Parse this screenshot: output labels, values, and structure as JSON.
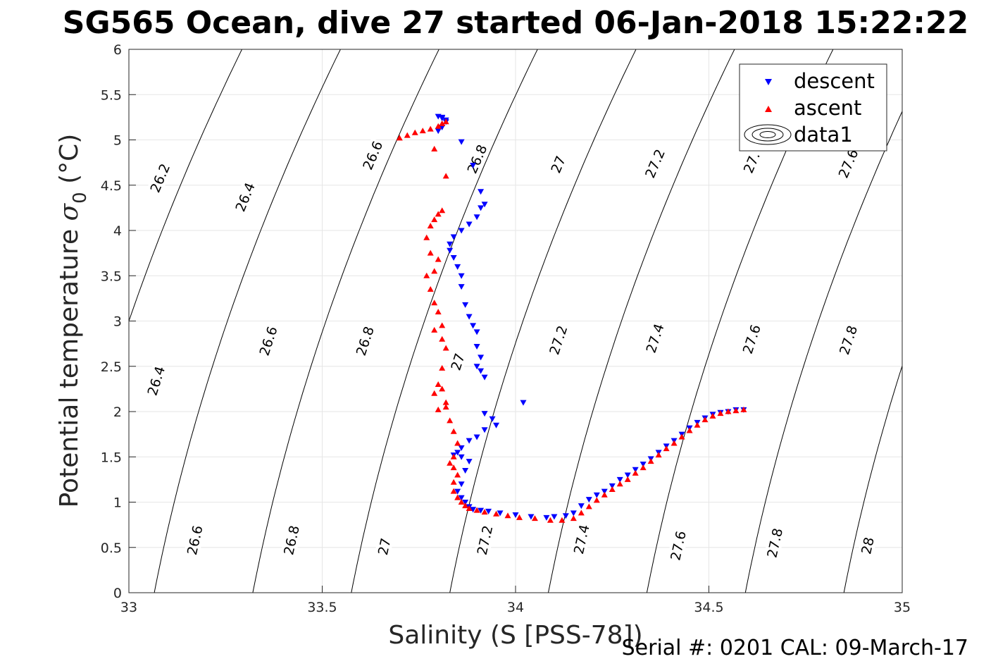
{
  "chart_data": {
    "type": "scatter",
    "title": "SG565 Ocean, dive 27 started 06-Jan-2018 15:22:22",
    "xlabel": "Salinity (S [PSS-78])",
    "ylabel_main": "Potential temperature ",
    "ylabel_sym": "σ",
    "ylabel_sub": "0",
    "ylabel_unit": " (°C)",
    "xlim": [
      33,
      35
    ],
    "ylim": [
      0,
      6
    ],
    "xticks": [
      "33",
      "33.5",
      "34",
      "34.5",
      "35"
    ],
    "yticks": [
      "0",
      "0.5",
      "1",
      "1.5",
      "2",
      "2.5",
      "3",
      "3.5",
      "4",
      "4.5",
      "5",
      "5.5",
      "6"
    ],
    "grid": true,
    "legend_position": "top-right",
    "legend": [
      "descent",
      "ascent",
      "data1"
    ],
    "footer": "Serial #: 0201  CAL: 09-March-17",
    "colors": {
      "descent": "#0000ff",
      "ascent": "#ff0000",
      "contour": "#000000",
      "grid": "#e6e6e6"
    },
    "contour_levels": [
      26.2,
      26.4,
      26.6,
      26.8,
      27,
      27.2,
      27.4,
      27.6,
      27.8,
      28
    ],
    "contour_labels": [
      {
        "text": "26.2",
        "s": 33.08,
        "t": 4.58
      },
      {
        "text": "26.4",
        "s": 33.3,
        "t": 4.37
      },
      {
        "text": "26.6",
        "s": 33.63,
        "t": 4.83
      },
      {
        "text": "26.8",
        "s": 33.9,
        "t": 4.79
      },
      {
        "text": "27",
        "s": 34.11,
        "t": 4.73
      },
      {
        "text": "27.2",
        "s": 34.36,
        "t": 4.74
      },
      {
        "text": "27.",
        "s": 34.61,
        "t": 4.75
      },
      {
        "text": "27.6",
        "s": 34.86,
        "t": 4.74
      },
      {
        "text": "26.4",
        "s": 33.07,
        "t": 2.34
      },
      {
        "text": "26.6",
        "s": 33.36,
        "t": 2.78
      },
      {
        "text": "26.8",
        "s": 33.61,
        "t": 2.78
      },
      {
        "text": "27",
        "s": 33.85,
        "t": 2.55
      },
      {
        "text": "27.2",
        "s": 34.11,
        "t": 2.79
      },
      {
        "text": "27.4",
        "s": 34.36,
        "t": 2.81
      },
      {
        "text": "27.6",
        "s": 34.61,
        "t": 2.8
      },
      {
        "text": "27.8",
        "s": 34.86,
        "t": 2.79
      },
      {
        "text": "26.6",
        "s": 33.17,
        "t": 0.58
      },
      {
        "text": "26.8",
        "s": 33.42,
        "t": 0.58
      },
      {
        "text": "27",
        "s": 33.66,
        "t": 0.51
      },
      {
        "text": "27.2",
        "s": 33.92,
        "t": 0.58
      },
      {
        "text": "27.4",
        "s": 34.17,
        "t": 0.59
      },
      {
        "text": "27.6",
        "s": 34.42,
        "t": 0.52
      },
      {
        "text": "27.8",
        "s": 34.67,
        "t": 0.55
      },
      {
        "text": "28",
        "s": 34.91,
        "t": 0.52
      }
    ],
    "series": [
      {
        "name": "descent",
        "marker": "triangle-down",
        "x": [
          33.8,
          33.81,
          33.82,
          33.81,
          33.8,
          33.81,
          33.82,
          33.86,
          33.89,
          33.91,
          33.92,
          33.91,
          33.9,
          33.88,
          33.86,
          33.84,
          33.83,
          33.83,
          33.84,
          33.85,
          33.86,
          33.86,
          33.87,
          33.88,
          33.89,
          33.9,
          33.9,
          33.91,
          33.9,
          33.91,
          33.92,
          33.92,
          33.94,
          34.02,
          33.95,
          33.92,
          33.9,
          33.88,
          33.86,
          33.85,
          33.84,
          33.86,
          33.88,
          33.87,
          33.86,
          33.85,
          33.86,
          33.87,
          33.88,
          33.89,
          33.91,
          33.93,
          33.96,
          34.0,
          34.04,
          34.08,
          34.1,
          34.13,
          34.15,
          34.17,
          34.19,
          34.21,
          34.23,
          34.25,
          34.27,
          34.29,
          34.31,
          34.33,
          34.35,
          34.37,
          34.39,
          34.41,
          34.43,
          34.45,
          34.47,
          34.49,
          34.51,
          34.53,
          34.55,
          34.57,
          34.59
        ],
        "y": [
          5.26,
          5.24,
          5.2,
          5.14,
          5.1,
          5.25,
          5.22,
          4.98,
          4.72,
          4.43,
          4.29,
          4.25,
          4.15,
          4.07,
          4.0,
          3.93,
          3.85,
          3.78,
          3.7,
          3.6,
          3.5,
          3.38,
          3.18,
          3.05,
          2.95,
          2.88,
          2.72,
          2.6,
          2.5,
          2.45,
          2.38,
          1.98,
          1.92,
          2.1,
          1.85,
          1.8,
          1.72,
          1.68,
          1.6,
          1.55,
          1.52,
          1.5,
          1.45,
          1.35,
          1.2,
          1.12,
          1.05,
          1.0,
          0.95,
          0.92,
          0.91,
          0.9,
          0.88,
          0.86,
          0.84,
          0.83,
          0.84,
          0.85,
          0.88,
          0.96,
          1.03,
          1.08,
          1.12,
          1.18,
          1.25,
          1.3,
          1.36,
          1.42,
          1.48,
          1.55,
          1.62,
          1.68,
          1.75,
          1.82,
          1.88,
          1.93,
          1.97,
          1.99,
          2.0,
          2.02,
          2.02
        ]
      },
      {
        "name": "ascent",
        "marker": "triangle-up",
        "x": [
          33.7,
          33.72,
          33.74,
          33.76,
          33.78,
          33.8,
          33.81,
          33.82,
          33.79,
          33.82,
          33.78,
          33.79,
          33.8,
          33.81,
          33.77,
          33.78,
          33.8,
          33.79,
          33.77,
          33.78,
          33.79,
          33.8,
          33.81,
          33.82,
          33.81,
          33.79,
          33.8,
          33.81,
          33.82,
          33.8,
          33.79,
          33.81,
          33.82,
          33.83,
          33.84,
          33.85,
          33.84,
          33.83,
          33.84,
          33.85,
          33.84,
          33.84,
          33.85,
          33.86,
          33.87,
          33.88,
          33.9,
          33.92,
          33.95,
          33.98,
          34.01,
          34.05,
          34.09,
          34.12,
          34.15,
          34.17,
          34.19,
          34.21,
          34.23,
          34.25,
          34.27,
          34.29,
          34.31,
          34.33,
          34.35,
          34.37,
          34.39,
          34.41,
          34.43,
          34.45,
          34.47,
          34.49,
          34.51,
          34.53,
          34.55,
          34.57,
          34.59
        ],
        "y": [
          5.02,
          5.05,
          5.08,
          5.1,
          5.12,
          5.15,
          5.18,
          5.2,
          4.9,
          4.6,
          4.05,
          4.12,
          4.18,
          4.22,
          3.92,
          3.75,
          3.68,
          3.55,
          3.5,
          3.35,
          3.2,
          3.1,
          2.95,
          2.7,
          2.8,
          2.9,
          2.3,
          2.48,
          2.1,
          2.02,
          2.2,
          2.25,
          2.05,
          1.9,
          1.78,
          1.65,
          1.5,
          1.43,
          1.38,
          1.3,
          1.22,
          1.12,
          1.05,
          1.0,
          0.96,
          0.93,
          0.91,
          0.89,
          0.87,
          0.85,
          0.83,
          0.82,
          0.8,
          0.8,
          0.82,
          0.88,
          0.95,
          1.02,
          1.08,
          1.14,
          1.2,
          1.25,
          1.32,
          1.38,
          1.45,
          1.52,
          1.59,
          1.65,
          1.72,
          1.79,
          1.85,
          1.91,
          1.95,
          1.98,
          2.0,
          2.01,
          2.02
        ]
      }
    ]
  }
}
